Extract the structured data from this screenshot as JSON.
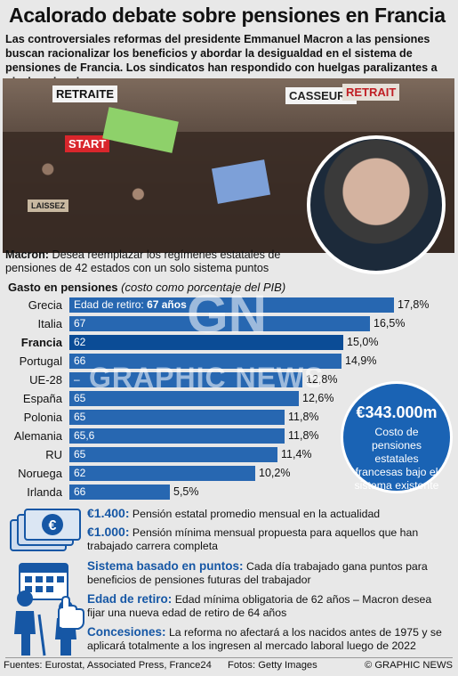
{
  "header": {
    "title": "Acalorado debate sobre pensiones en Francia",
    "subtitle": "Las controversiales reformas del presidente Emmanuel Macron a las pensiones buscan racionalizar los beneficios y abordar la desigualdad en el sistema de pensiones de Francia. Los sindicatos han respondido con huelgas paralizantes a nivel nacional"
  },
  "photo": {
    "signs": [
      "RETRAITE",
      "CASSEURS",
      "RETRAIT",
      "START",
      "LAISSEZ"
    ]
  },
  "macron": {
    "label": "Macron:",
    "text": "Desea reemplazar los regímenes estatales de pensiones de 42 estados con un solo sistema puntos"
  },
  "chart_title": {
    "main": "Gasto en pensiones",
    "sub": "(costo como porcentaje del PIB)"
  },
  "chart_data": {
    "type": "bar",
    "title": "Gasto en pensiones",
    "subtitle": "(costo como porcentaje del PIB)",
    "retirement_label": "Edad de retiro:",
    "categories": [
      "Grecia",
      "Italia",
      "Francia",
      "Portugal",
      "UE-28",
      "España",
      "Polonia",
      "Alemania",
      "RU",
      "Noruega",
      "Irlanda"
    ],
    "values": [
      17.8,
      16.5,
      15.0,
      14.9,
      12.8,
      12.6,
      11.8,
      11.8,
      11.4,
      10.2,
      5.5
    ],
    "value_labels": [
      "17,8%",
      "16,5%",
      "15,0%",
      "14,9%",
      "12,8%",
      "12,6%",
      "11,8%",
      "11,8%",
      "11,4%",
      "10,2%",
      "5,5%"
    ],
    "retirement_ages": [
      "67 años",
      "67",
      "62",
      "66",
      "–",
      "65",
      "65",
      "65,6",
      "65",
      "62",
      "66"
    ],
    "highlight": "Francia",
    "unit": "%",
    "colors": {
      "bar": "#2767b1",
      "highlight": "#0b4c96"
    }
  },
  "bubble": {
    "amount": "€343.000m",
    "text": "Costo de pensiones estatales francesas bajo el sistema existente"
  },
  "facts": [
    {
      "key": "€1.400:",
      "text": "Pensión estatal promedio mensual en la actualidad"
    },
    {
      "key": "€1.000:",
      "text": "Pensión mínima mensual propuesta para aquellos que han trabajado carrera completa"
    },
    {
      "key": "Sistema basado en puntos:",
      "text": "Cada día trabajado gana puntos para beneficios de pensiones futuras del trabajador"
    },
    {
      "key": "Edad de retiro:",
      "text": "Edad mínima obligatoria de 62 años – Macron desea fijar una nueva edad de retiro de 64 años"
    },
    {
      "key": "Concesiones:",
      "text": "La reforma no afectará a los nacidos antes de 1975 y se aplicará totalmente a los ingresen al mercado laboral luego de 2022"
    }
  ],
  "footer": {
    "sources": "Fuentes: Eurostat, Associated Press, France24",
    "photos": "Fotos: Getty Images",
    "credit": "© GRAPHIC NEWS"
  },
  "watermark": {
    "logo": "GN",
    "text": "GRAPHIC NEWS"
  },
  "icons": [
    "euro-notes-icon",
    "calendar-icon",
    "elderly-people-icon",
    "hand-icon"
  ]
}
